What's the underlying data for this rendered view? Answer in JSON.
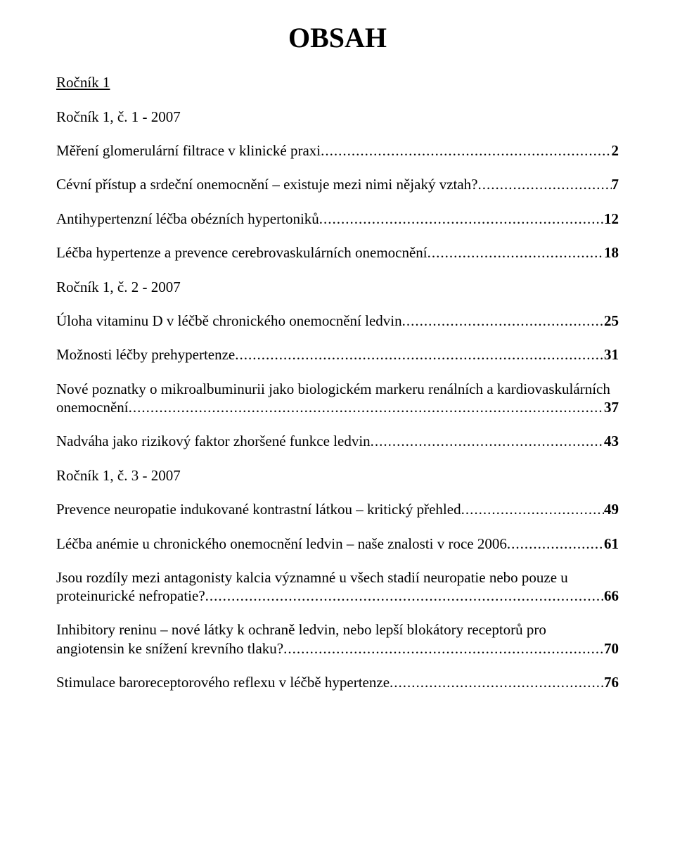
{
  "title": "OBSAH",
  "volume_heading": "Ročník 1",
  "issues": [
    {
      "heading": "Ročník 1, č. 1 - 2007",
      "entries": [
        {
          "lines": [
            "Měření glomerulární filtrace v klinické praxi"
          ],
          "page": "2"
        },
        {
          "lines": [
            "Cévní přístup a srdeční onemocnění – existuje mezi nimi nějaký vztah?"
          ],
          "page": "7"
        },
        {
          "lines": [
            "Antihypertenzní léčba obézních hypertoniků"
          ],
          "page": "12"
        },
        {
          "lines": [
            "Léčba hypertenze a prevence cerebrovaskulárních onemocnění"
          ],
          "page": "18"
        }
      ]
    },
    {
      "heading": "Ročník 1, č. 2 - 2007",
      "entries": [
        {
          "lines": [
            "Úloha vitaminu D v léčbě chronického onemocnění ledvin"
          ],
          "page": "25"
        },
        {
          "lines": [
            "Možnosti léčby prehypertenze"
          ],
          "page": "31"
        },
        {
          "lines": [
            "Nové poznatky o mikroalbuminurii jako biologickém markeru renálních a kardiovaskulárních",
            "onemocnění"
          ],
          "page": "37"
        },
        {
          "lines": [
            "Nadváha jako rizikový faktor zhoršené funkce ledvin"
          ],
          "page": "43"
        }
      ]
    },
    {
      "heading": "Ročník 1, č. 3 - 2007",
      "entries": [
        {
          "lines": [
            "Prevence neuropatie indukované kontrastní látkou – kritický přehled"
          ],
          "page": "49"
        },
        {
          "lines": [
            "Léčba anémie u chronického onemocnění ledvin – naše znalosti v roce 2006"
          ],
          "page": "61"
        },
        {
          "lines": [
            "Jsou rozdíly mezi antagonisty kalcia významné u všech stadií neuropatie nebo pouze u",
            "proteinurické nefropatie?"
          ],
          "page": "66"
        },
        {
          "lines": [
            "Inhibitory reninu – nové látky k ochraně ledvin, nebo lepší blokátory receptorů pro",
            "angiotensin ke snížení krevního tlaku?"
          ],
          "page": "70"
        },
        {
          "lines": [
            "Stimulace baroreceptorového reflexu v léčbě hypertenze"
          ],
          "page": "76"
        }
      ]
    }
  ]
}
